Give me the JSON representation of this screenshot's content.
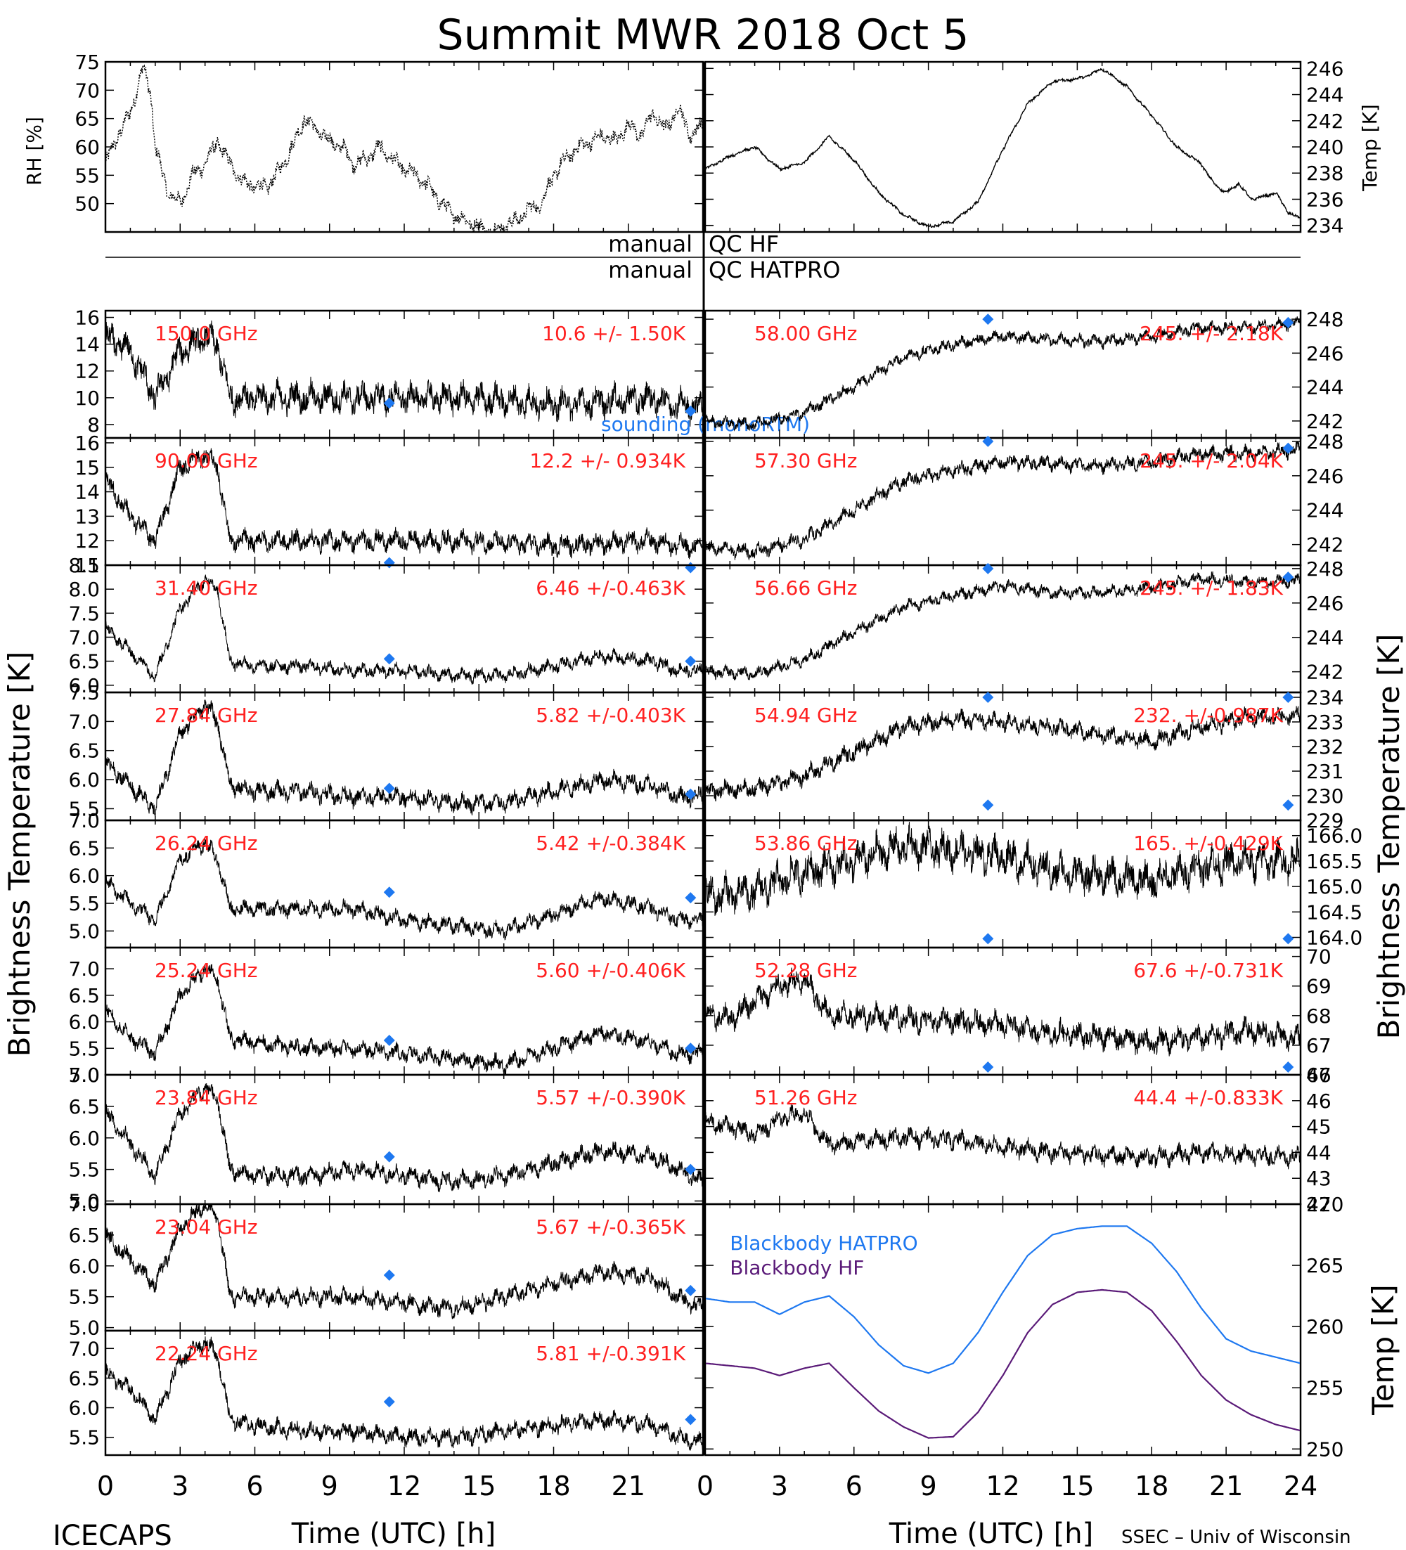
{
  "header": {
    "title": "Summit MWR 2018 Oct  5",
    "left_footer": "ICECAPS",
    "right_footer": "SSEC – Univ of Wisconsin"
  },
  "qc_labels": {
    "left1": "manual",
    "right1": "QC HF",
    "left2": "manual",
    "right2": "QC HATPRO"
  },
  "axis_labels": {
    "rh": "RH [%]",
    "temp_top": "Temp [K]",
    "bt_left": "Brightness Temperature [K]",
    "bt_right": "Brightness Temperature [K]",
    "temp_bottom": "Temp [K]",
    "x_left": "Time (UTC) [h]",
    "x_right": "Time (UTC) [h]"
  },
  "x_ticks": [
    "0",
    "3",
    "6",
    "9",
    "12",
    "15",
    "18",
    "21"
  ],
  "x_ticks_right": [
    "0",
    "3",
    "6",
    "9",
    "12",
    "15",
    "18",
    "21",
    "24"
  ],
  "colors": {
    "red": "#ff2020",
    "blue": "#1e78f0",
    "purple": "#5a1a78",
    "hatpro": "#1e78f0",
    "trace": "#000000"
  },
  "chart_data": [
    {
      "panel": "rh",
      "type": "line",
      "ylabel": "RH [%]",
      "xlim": [
        0,
        24
      ],
      "ylim": [
        45,
        75
      ],
      "yticks": [
        50,
        55,
        60,
        65,
        70,
        75
      ],
      "x": [
        0,
        0.5,
        1,
        1.5,
        1.8,
        2,
        2.5,
        3,
        3.5,
        4,
        4.5,
        5,
        5.5,
        6,
        6.5,
        7,
        7.5,
        8,
        8.5,
        9,
        9.5,
        10,
        10.5,
        11,
        11.5,
        12,
        12.5,
        13,
        13.5,
        14,
        14.5,
        15,
        15.5,
        16,
        16.5,
        17,
        17.5,
        18,
        18.5,
        19,
        19.5,
        20,
        20.5,
        21,
        21.5,
        22,
        22.5,
        23,
        23.5,
        24
      ],
      "y": [
        57,
        62,
        66,
        74,
        70,
        60,
        52,
        50,
        55,
        57,
        61,
        57,
        54,
        53,
        53,
        56,
        60,
        65,
        63,
        61,
        60,
        57,
        58,
        60,
        58,
        56,
        55,
        53,
        50,
        48,
        47,
        46,
        45,
        46,
        47,
        49,
        50,
        55,
        58,
        60,
        61,
        62,
        61,
        64,
        62,
        66,
        63,
        67,
        62,
        64
      ],
      "noise": 1.2,
      "dotted_from": 18
    },
    {
      "panel": "temp",
      "type": "line",
      "ylabel": "Temp [K]",
      "xlim": [
        0,
        24
      ],
      "ylim": [
        233.5,
        246.5
      ],
      "yticks": [
        234,
        236,
        238,
        240,
        242,
        244,
        246
      ],
      "x": [
        0,
        1,
        2,
        3,
        4,
        5,
        6,
        7,
        8,
        9,
        10,
        11,
        12,
        13,
        14,
        15,
        15.5,
        16,
        17,
        18,
        19,
        20,
        20.5,
        21,
        21.5,
        22,
        22.5,
        23,
        23.5,
        24
      ],
      "y": [
        238.3,
        239.3,
        240,
        238.3,
        238.8,
        240.8,
        239,
        236.5,
        234.8,
        233.9,
        234.3,
        235.8,
        239.8,
        243.3,
        245,
        245.2,
        245.5,
        246,
        244.6,
        242.4,
        240,
        238.7,
        237.2,
        236.5,
        237.2,
        236,
        236.2,
        236.5,
        235,
        234.5
      ],
      "noise": 0.1
    },
    {
      "panel": "ch150",
      "side": "left",
      "freq": "150.0 GHz",
      "stat": "10.6 +/-  1.50K",
      "ylim": [
        7,
        16.5
      ],
      "yticks": [
        8,
        10,
        12,
        14,
        16
      ],
      "tick_fmt": 0,
      "x": [
        0,
        1,
        2,
        3,
        4,
        4.5,
        5,
        6,
        8,
        10,
        12,
        14,
        16,
        18,
        20,
        22,
        23,
        24
      ],
      "y": [
        14.5,
        13.5,
        10,
        13.5,
        14.5,
        14,
        10,
        10,
        10,
        10,
        10,
        10,
        9.8,
        9.5,
        9.7,
        10,
        9.5,
        9.3
      ],
      "noise": 0.95,
      "sonde": [
        {
          "x": 11.4,
          "y": 9.6
        },
        {
          "x": 23.5,
          "y": 9.0
        }
      ],
      "note": "sounding (monoRTM)"
    },
    {
      "panel": "ch9030",
      "side": "left",
      "freq": "90.00 GHz",
      "stat": "12.2 +/- 0.934K",
      "ylim": [
        11,
        16.2
      ],
      "yticks": [
        11,
        12,
        13,
        14,
        15,
        16
      ],
      "tick_fmt": 0,
      "x": [
        0,
        1,
        2,
        3,
        4,
        4.5,
        5,
        6,
        8,
        10,
        12,
        14,
        16,
        18,
        20,
        22,
        23,
        24
      ],
      "y": [
        14.5,
        13,
        12,
        15,
        15.5,
        15,
        12,
        12,
        12,
        12,
        12,
        12,
        11.9,
        11.8,
        11.9,
        12,
        11.8,
        11.7
      ],
      "noise": 0.35,
      "sonde": [
        {
          "x": 11.4,
          "y": 11.1
        },
        {
          "x": 23.5,
          "y": 10.9
        }
      ]
    },
    {
      "panel": "ch3140",
      "side": "left",
      "freq": "31.40 GHz",
      "stat": "6.46 +/-0.463K",
      "ylim": [
        5.85,
        8.5
      ],
      "yticks": [
        6.0,
        6.5,
        7.0,
        7.5,
        8.0,
        8.5
      ],
      "tick_fmt": 1,
      "x": [
        0,
        1,
        2,
        3,
        4,
        4.5,
        5,
        6,
        8,
        10,
        12,
        14,
        16,
        18,
        20,
        22,
        23,
        24
      ],
      "y": [
        7.2,
        6.7,
        6.2,
        7.6,
        8.2,
        8.0,
        6.5,
        6.4,
        6.4,
        6.3,
        6.3,
        6.2,
        6.2,
        6.4,
        6.6,
        6.5,
        6.3,
        6.3
      ],
      "noise": 0.12,
      "sonde": [
        {
          "x": 11.4,
          "y": 6.55
        },
        {
          "x": 23.5,
          "y": 6.5
        }
      ]
    },
    {
      "panel": "ch2784",
      "side": "left",
      "freq": "27.84 GHz",
      "stat": "5.82 +/-0.403K",
      "ylim": [
        5.3,
        7.5
      ],
      "yticks": [
        5.5,
        6.0,
        6.5,
        7.0,
        7.5
      ],
      "tick_fmt": 1,
      "x": [
        0,
        1,
        2,
        3,
        4,
        4.5,
        5,
        6,
        8,
        10,
        12,
        14,
        16,
        18,
        20,
        22,
        23,
        24
      ],
      "y": [
        6.3,
        5.9,
        5.5,
        6.8,
        7.3,
        7.0,
        5.9,
        5.8,
        5.8,
        5.7,
        5.7,
        5.6,
        5.6,
        5.8,
        6.0,
        5.9,
        5.7,
        5.7
      ],
      "noise": 0.13,
      "sonde": [
        {
          "x": 11.4,
          "y": 5.85
        },
        {
          "x": 23.5,
          "y": 5.75
        }
      ]
    },
    {
      "panel": "ch2624",
      "side": "left",
      "freq": "26.24 GHz",
      "stat": "5.42 +/-0.384K",
      "ylim": [
        4.7,
        7.0
      ],
      "yticks": [
        5.0,
        5.5,
        6.0,
        6.5,
        7.0
      ],
      "tick_fmt": 1,
      "x": [
        0,
        1,
        2,
        3,
        4,
        4.5,
        5,
        6,
        8,
        10,
        12,
        14,
        16,
        18,
        20,
        22,
        23,
        24
      ],
      "y": [
        5.9,
        5.5,
        5.2,
        6.3,
        6.6,
        6.3,
        5.4,
        5.4,
        5.4,
        5.4,
        5.2,
        5.1,
        5.0,
        5.3,
        5.6,
        5.4,
        5.2,
        5.2
      ],
      "noise": 0.12,
      "sonde": [
        {
          "x": 11.4,
          "y": 5.7
        },
        {
          "x": 23.5,
          "y": 5.6
        }
      ]
    },
    {
      "panel": "ch2524",
      "side": "left",
      "freq": "25.24 GHz",
      "stat": "5.60 +/-0.406K",
      "ylim": [
        5.0,
        7.4
      ],
      "yticks": [
        5.0,
        5.5,
        6.0,
        6.5,
        7.0
      ],
      "tick_fmt": 1,
      "x": [
        0,
        1,
        2,
        3,
        4,
        4.5,
        5,
        6,
        8,
        10,
        12,
        14,
        16,
        18,
        20,
        22,
        23,
        24
      ],
      "y": [
        6.2,
        5.7,
        5.4,
        6.5,
        7.0,
        6.8,
        5.7,
        5.6,
        5.5,
        5.5,
        5.4,
        5.3,
        5.2,
        5.5,
        5.8,
        5.6,
        5.4,
        5.4
      ],
      "noise": 0.13,
      "sonde": [
        {
          "x": 11.4,
          "y": 5.65
        },
        {
          "x": 23.5,
          "y": 5.5
        }
      ]
    },
    {
      "panel": "ch2384",
      "side": "left",
      "freq": "23.84 GHz",
      "stat": "5.57 +/-0.390K",
      "ylim": [
        4.95,
        7.0
      ],
      "yticks": [
        5.0,
        5.5,
        6.0,
        6.5,
        7.0
      ],
      "tick_fmt": 1,
      "x": [
        0,
        1,
        2,
        3,
        4,
        4.5,
        5,
        6,
        8,
        10,
        12,
        14,
        16,
        18,
        20,
        22,
        23,
        24
      ],
      "y": [
        6.4,
        5.9,
        5.4,
        6.4,
        6.8,
        6.6,
        5.5,
        5.4,
        5.4,
        5.5,
        5.4,
        5.3,
        5.4,
        5.6,
        5.8,
        5.7,
        5.5,
        5.3
      ],
      "noise": 0.12,
      "sonde": [
        {
          "x": 11.4,
          "y": 5.7
        },
        {
          "x": 23.5,
          "y": 5.5
        }
      ]
    },
    {
      "panel": "ch2304",
      "side": "left",
      "freq": "23.04 GHz",
      "stat": "5.67 +/-0.365K",
      "ylim": [
        4.95,
        7.0
      ],
      "yticks": [
        5.0,
        5.5,
        6.0,
        6.5,
        7.0
      ],
      "tick_fmt": 1,
      "x": [
        0,
        1,
        2,
        3,
        4,
        4.5,
        5,
        6,
        8,
        10,
        12,
        14,
        16,
        18,
        20,
        22,
        23,
        24
      ],
      "y": [
        6.5,
        6.1,
        5.7,
        6.6,
        7.0,
        6.8,
        5.5,
        5.5,
        5.5,
        5.5,
        5.4,
        5.3,
        5.5,
        5.7,
        5.9,
        5.8,
        5.5,
        5.3
      ],
      "noise": 0.12,
      "sonde": [
        {
          "x": 11.4,
          "y": 5.85
        },
        {
          "x": 23.5,
          "y": 5.6
        }
      ]
    },
    {
      "panel": "ch2224",
      "side": "left",
      "freq": "22.24 GHz",
      "stat": "5.81 +/-0.391K",
      "ylim": [
        5.2,
        7.3
      ],
      "yticks": [
        5.5,
        6.0,
        6.5,
        7.0
      ],
      "tick_fmt": 1,
      "x": [
        0,
        1,
        2,
        3,
        4,
        4.5,
        5,
        6,
        8,
        10,
        12,
        14,
        16,
        18,
        20,
        22,
        23,
        24
      ],
      "y": [
        6.6,
        6.3,
        5.8,
        6.8,
        7.1,
        6.9,
        5.8,
        5.7,
        5.6,
        5.6,
        5.5,
        5.5,
        5.6,
        5.7,
        5.8,
        5.7,
        5.5,
        5.4
      ],
      "noise": 0.12,
      "sonde": [
        {
          "x": 11.4,
          "y": 6.1
        },
        {
          "x": 23.5,
          "y": 5.8
        }
      ]
    },
    {
      "panel": "ch5800",
      "side": "right",
      "freq": "58.00 GHz",
      "stat": "245. +/- 2.18K",
      "ylim": [
        241,
        248.5
      ],
      "yticks": [
        242,
        244,
        246,
        248
      ],
      "tick_fmt": 0,
      "x": [
        0,
        2,
        4,
        6,
        8,
        10,
        12,
        14,
        16,
        18,
        20,
        22,
        24
      ],
      "y": [
        242,
        241.8,
        242.5,
        244,
        245.8,
        246.5,
        247,
        246.8,
        246.7,
        247,
        247.5,
        247.5,
        247.8
      ],
      "noise": 0.3,
      "sonde": [
        {
          "x": 11.4,
          "y": 248
        },
        {
          "x": 23.5,
          "y": 247.8
        }
      ]
    },
    {
      "panel": "ch5730",
      "side": "right",
      "freq": "57.30 GHz",
      "stat": "245. +/- 2.04K",
      "ylim": [
        240.8,
        248.2
      ],
      "yticks": [
        242,
        244,
        246,
        248
      ],
      "tick_fmt": 0,
      "x": [
        0,
        2,
        4,
        6,
        8,
        10,
        12,
        14,
        16,
        18,
        20,
        22,
        24
      ],
      "y": [
        241.8,
        241.6,
        242.3,
        244,
        245.7,
        246.3,
        246.8,
        246.7,
        246.6,
        246.8,
        247.3,
        247.3,
        247.5
      ],
      "noise": 0.35,
      "sonde": [
        {
          "x": 11.4,
          "y": 248
        },
        {
          "x": 23.5,
          "y": 247.6
        }
      ]
    },
    {
      "panel": "ch5666",
      "side": "right",
      "freq": "56.66 GHz",
      "stat": "245. +/- 1.83K",
      "ylim": [
        240.8,
        248.2
      ],
      "yticks": [
        242,
        244,
        246,
        248
      ],
      "tick_fmt": 0,
      "x": [
        0,
        2,
        4,
        6,
        8,
        10,
        12,
        14,
        16,
        18,
        20,
        22,
        24
      ],
      "y": [
        242,
        241.9,
        242.7,
        244.3,
        245.8,
        246.4,
        247,
        246.6,
        246.6,
        246.9,
        247.4,
        247.2,
        247.3
      ],
      "noise": 0.3,
      "sonde": [
        {
          "x": 11.4,
          "y": 248
        },
        {
          "x": 23.5,
          "y": 247.5
        }
      ]
    },
    {
      "panel": "ch5494",
      "side": "right",
      "freq": "54.94 GHz",
      "stat": "232. +/-0.987K",
      "ylim": [
        229,
        234.2
      ],
      "yticks": [
        229,
        230,
        231,
        232,
        233,
        234
      ],
      "tick_fmt": 0,
      "x": [
        0,
        2,
        4,
        6,
        8,
        10,
        12,
        14,
        16,
        18,
        20,
        22,
        24
      ],
      "y": [
        230.2,
        230.3,
        230.8,
        231.8,
        232.8,
        233.1,
        233,
        232.8,
        232.5,
        232.2,
        232.8,
        233.2,
        233.2
      ],
      "noise": 0.3,
      "sonde": [
        {
          "x": 11.4,
          "y": 234
        },
        {
          "x": 23.5,
          "y": 234
        }
      ]
    },
    {
      "panel": "ch5386",
      "side": "right",
      "freq": "53.86 GHz",
      "stat": "165. +/-0.429K",
      "ylim": [
        163.8,
        166.3
      ],
      "yticks": [
        164.0,
        164.5,
        165.0,
        165.5,
        166.0
      ],
      "tick_fmt": 1,
      "x": [
        0,
        2,
        4,
        6,
        8,
        10,
        12,
        14,
        16,
        18,
        20,
        22,
        24
      ],
      "y": [
        164.8,
        164.9,
        165.3,
        165.5,
        165.8,
        165.7,
        165.6,
        165.3,
        165.2,
        165.1,
        165.4,
        165.5,
        165.5
      ],
      "noise": 0.3,
      "sonde": [
        {
          "x": 11.4,
          "y": 166.6
        },
        {
          "x": 23.5,
          "y": 166.6
        }
      ]
    },
    {
      "panel": "ch5228",
      "side": "right",
      "freq": "52.28 GHz",
      "stat": "67.6 +/-0.731K",
      "ylim": [
        66,
        70.3
      ],
      "yticks": [
        66,
        67,
        68,
        69,
        70
      ],
      "tick_fmt": 0,
      "x": [
        0,
        1,
        2,
        3,
        4,
        5,
        6,
        8,
        10,
        12,
        14,
        16,
        18,
        20,
        22,
        24
      ],
      "y": [
        68,
        67.9,
        68.5,
        69,
        69.2,
        68,
        68,
        67.9,
        67.8,
        67.7,
        67.4,
        67.3,
        67.1,
        67.3,
        67.5,
        67.2
      ],
      "noise": 0.35,
      "sonde": [
        {
          "x": 11.4,
          "y": 70.6
        },
        {
          "x": 23.5,
          "y": 70.6
        }
      ]
    },
    {
      "panel": "ch5128",
      "side": "right",
      "freq": "51.26 GHz",
      "stat": "44.4 +/-0.833K",
      "ylim": [
        42,
        47
      ],
      "yticks": [
        42,
        43,
        44,
        45,
        46,
        47
      ],
      "tick_fmt": 0,
      "x": [
        0,
        1,
        2,
        3,
        4,
        5,
        6,
        8,
        10,
        12,
        14,
        16,
        18,
        20,
        22,
        24
      ],
      "y": [
        45.2,
        45,
        44.7,
        45.3,
        45.5,
        44.3,
        44.4,
        44.6,
        44.5,
        44.2,
        44,
        43.9,
        43.8,
        44,
        43.9,
        43.8
      ],
      "noise": 0.3,
      "sonde": [
        {
          "x": 11.4,
          "y": 47.3
        },
        {
          "x": 23.5,
          "y": 47.3
        }
      ]
    },
    {
      "panel": "blackbody",
      "type": "line",
      "ylabel": "Temp [K]",
      "xlim": [
        0,
        24
      ],
      "ylim": [
        249.5,
        270
      ],
      "yticks": [
        250,
        255,
        260,
        265,
        270
      ],
      "x": [
        0,
        1,
        2,
        3,
        4,
        5,
        6,
        7,
        8,
        9,
        10,
        11,
        12,
        13,
        14,
        15,
        16,
        17,
        18,
        19,
        20,
        21,
        22,
        23,
        24
      ],
      "series": [
        {
          "name": "Blackbody HATPRO",
          "values": [
            262.3,
            262,
            262,
            261,
            262,
            262.5,
            260.8,
            258.5,
            256.8,
            256.2,
            257,
            259.5,
            262.8,
            265.8,
            267.5,
            268,
            268.2,
            268.2,
            266.8,
            264.5,
            261.5,
            259,
            258,
            257.5,
            257
          ]
        },
        {
          "name": "Blackbody HF",
          "values": [
            257,
            256.8,
            256.6,
            256,
            256.6,
            257,
            255,
            253.1,
            251.8,
            250.9,
            251,
            253,
            256,
            259.5,
            261.8,
            262.8,
            263,
            262.8,
            261.3,
            258.8,
            256,
            254,
            252.8,
            252,
            251.5
          ]
        }
      ]
    }
  ]
}
